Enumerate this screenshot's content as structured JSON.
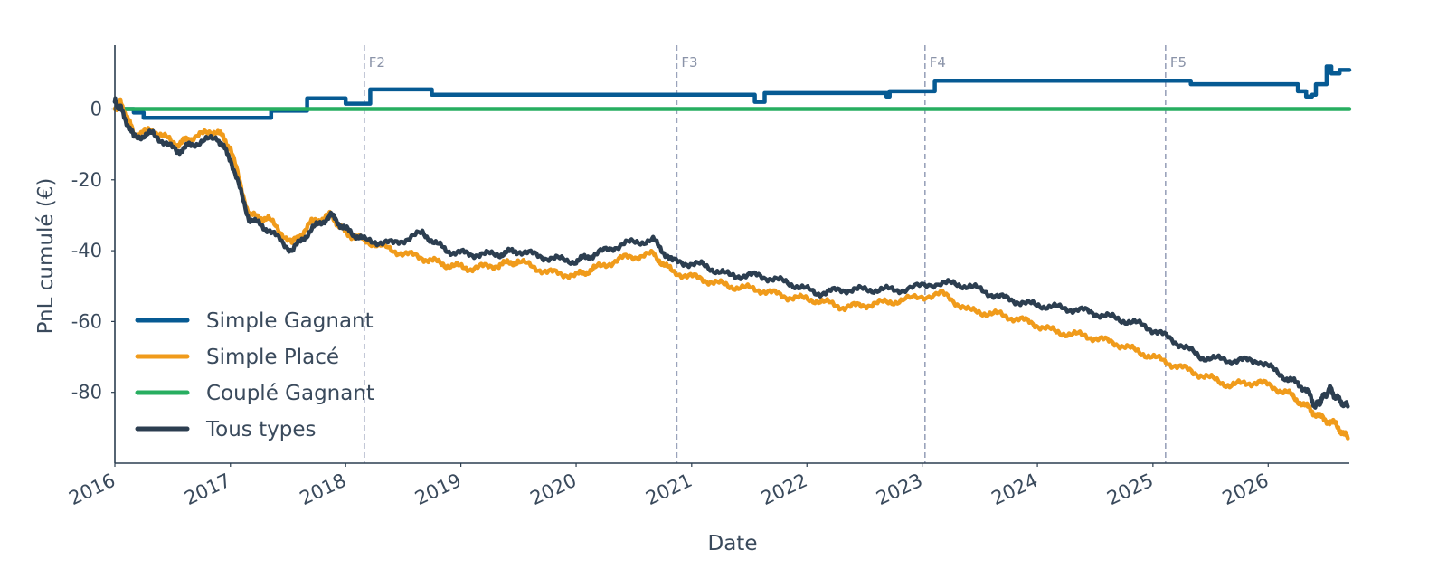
{
  "chart_data": {
    "type": "line",
    "xlabel": "Date",
    "ylabel": "PnL cumulé (€)",
    "xlim": [
      "2016-01-01",
      "2026-09-15"
    ],
    "ylim": [
      -100,
      18
    ],
    "x_ticks": [
      "2016",
      "2017",
      "2018",
      "2019",
      "2020",
      "2021",
      "2022",
      "2023",
      "2024",
      "2025",
      "2026"
    ],
    "y_ticks": [
      0,
      -20,
      -40,
      -60,
      -80
    ],
    "grid": false,
    "legend_position": "bottom-left",
    "fold_markers": [
      {
        "label": "F2",
        "date": "2018-03-01"
      },
      {
        "label": "F3",
        "date": "2020-11-15"
      },
      {
        "label": "F4",
        "date": "2023-01-10"
      },
      {
        "label": "F5",
        "date": "2025-02-10"
      }
    ],
    "series": [
      {
        "name": "Simple Gagnant",
        "color": "#065a93",
        "step": true,
        "points": [
          [
            "2016-01-01",
            2
          ],
          [
            "2016-01-15",
            0
          ],
          [
            "2016-03-01",
            -1
          ],
          [
            "2016-04-01",
            -2.5
          ],
          [
            "2017-05-10",
            -0.5
          ],
          [
            "2017-09-01",
            3
          ],
          [
            "2018-01-01",
            1.5
          ],
          [
            "2018-03-20",
            5.5
          ],
          [
            "2018-10-01",
            4
          ],
          [
            "2021-07-20",
            2
          ],
          [
            "2021-08-20",
            4.5
          ],
          [
            "2022-09-10",
            3.5
          ],
          [
            "2022-09-20",
            5
          ],
          [
            "2023-02-10",
            8
          ],
          [
            "2025-05-01",
            7
          ],
          [
            "2026-04-05",
            5
          ],
          [
            "2026-05-01",
            3.5
          ],
          [
            "2026-05-20",
            4
          ],
          [
            "2026-06-01",
            7
          ],
          [
            "2026-07-05",
            12
          ],
          [
            "2026-07-20",
            10
          ],
          [
            "2026-08-15",
            11
          ]
        ]
      },
      {
        "name": "Simple Placé",
        "color": "#f09b1b",
        "step": false,
        "points": [
          [
            "2016-01-01",
            0
          ],
          [
            "2016-01-20",
            2
          ],
          [
            "2016-03-01",
            -7
          ],
          [
            "2016-05-01",
            -6
          ],
          [
            "2016-07-15",
            -10
          ],
          [
            "2016-09-01",
            -8
          ],
          [
            "2016-11-20",
            -6
          ],
          [
            "2017-01-01",
            -11
          ],
          [
            "2017-03-01",
            -30
          ],
          [
            "2017-05-01",
            -31
          ],
          [
            "2017-07-15",
            -38
          ],
          [
            "2017-09-15",
            -32
          ],
          [
            "2017-11-15",
            -30
          ],
          [
            "2018-01-01",
            -35
          ],
          [
            "2018-03-01",
            -37
          ],
          [
            "2018-06-01",
            -40
          ],
          [
            "2018-09-01",
            -42
          ],
          [
            "2018-11-15",
            -44
          ],
          [
            "2019-02-01",
            -45
          ],
          [
            "2019-05-01",
            -44
          ],
          [
            "2019-07-01",
            -43
          ],
          [
            "2019-10-01",
            -46
          ],
          [
            "2020-01-01",
            -47
          ],
          [
            "2020-03-01",
            -45
          ],
          [
            "2020-06-01",
            -42
          ],
          [
            "2020-09-01",
            -41
          ],
          [
            "2020-11-01",
            -46
          ],
          [
            "2021-02-01",
            -48
          ],
          [
            "2021-05-01",
            -50
          ],
          [
            "2021-08-01",
            -51
          ],
          [
            "2021-11-01",
            -53
          ],
          [
            "2022-02-01",
            -54
          ],
          [
            "2022-05-01",
            -56
          ],
          [
            "2022-08-01",
            -55
          ],
          [
            "2022-11-01",
            -54
          ],
          [
            "2023-03-01",
            -52
          ],
          [
            "2023-06-01",
            -57
          ],
          [
            "2023-09-01",
            -58
          ],
          [
            "2023-12-01",
            -60
          ],
          [
            "2024-03-01",
            -63
          ],
          [
            "2024-06-01",
            -64
          ],
          [
            "2024-09-01",
            -66
          ],
          [
            "2024-12-01",
            -69
          ],
          [
            "2025-03-01",
            -72
          ],
          [
            "2025-06-01",
            -75
          ],
          [
            "2025-09-01",
            -78
          ],
          [
            "2025-12-01",
            -77
          ],
          [
            "2026-03-01",
            -80
          ],
          [
            "2026-05-01",
            -84
          ],
          [
            "2026-06-15",
            -87
          ],
          [
            "2026-08-01",
            -89
          ],
          [
            "2026-09-10",
            -93
          ]
        ]
      },
      {
        "name": "Couplé Gagnant",
        "color": "#27ae60",
        "step": false,
        "points": [
          [
            "2016-01-01",
            0
          ],
          [
            "2026-09-15",
            0
          ]
        ]
      },
      {
        "name": "Tous types",
        "color": "#2c3e50",
        "step": false,
        "points": [
          [
            "2016-01-01",
            2
          ],
          [
            "2016-01-20",
            0
          ],
          [
            "2016-03-01",
            -8
          ],
          [
            "2016-05-01",
            -7
          ],
          [
            "2016-07-15",
            -12
          ],
          [
            "2016-09-01",
            -10
          ],
          [
            "2016-11-20",
            -8
          ],
          [
            "2017-01-01",
            -14
          ],
          [
            "2017-03-01",
            -31
          ],
          [
            "2017-05-01",
            -34
          ],
          [
            "2017-07-15",
            -40
          ],
          [
            "2017-09-15",
            -34
          ],
          [
            "2017-11-15",
            -30
          ],
          [
            "2018-01-01",
            -34
          ],
          [
            "2018-03-01",
            -37
          ],
          [
            "2018-06-01",
            -38
          ],
          [
            "2018-09-01",
            -35
          ],
          [
            "2018-11-15",
            -40
          ],
          [
            "2019-02-01",
            -41
          ],
          [
            "2019-05-01",
            -41
          ],
          [
            "2019-07-01",
            -40
          ],
          [
            "2019-10-01",
            -42
          ],
          [
            "2020-01-01",
            -43
          ],
          [
            "2020-03-01",
            -41
          ],
          [
            "2020-06-01",
            -38
          ],
          [
            "2020-09-01",
            -37
          ],
          [
            "2020-11-01",
            -43
          ],
          [
            "2021-02-01",
            -44
          ],
          [
            "2021-05-01",
            -47
          ],
          [
            "2021-08-01",
            -47
          ],
          [
            "2021-11-01",
            -49
          ],
          [
            "2022-02-01",
            -52
          ],
          [
            "2022-05-01",
            -51
          ],
          [
            "2022-08-01",
            -51
          ],
          [
            "2022-11-01",
            -51
          ],
          [
            "2023-03-01",
            -49
          ],
          [
            "2023-06-01",
            -50
          ],
          [
            "2023-09-01",
            -53
          ],
          [
            "2023-12-01",
            -55
          ],
          [
            "2024-03-01",
            -56
          ],
          [
            "2024-06-01",
            -57
          ],
          [
            "2024-09-01",
            -59
          ],
          [
            "2024-12-01",
            -61
          ],
          [
            "2025-03-01",
            -65
          ],
          [
            "2025-06-01",
            -70
          ],
          [
            "2025-09-01",
            -71
          ],
          [
            "2025-12-01",
            -71
          ],
          [
            "2026-03-01",
            -76
          ],
          [
            "2026-05-01",
            -79
          ],
          [
            "2026-06-01",
            -84
          ],
          [
            "2026-06-20",
            -82
          ],
          [
            "2026-07-15",
            -79
          ],
          [
            "2026-08-10",
            -82
          ],
          [
            "2026-09-10",
            -84
          ]
        ]
      }
    ]
  }
}
